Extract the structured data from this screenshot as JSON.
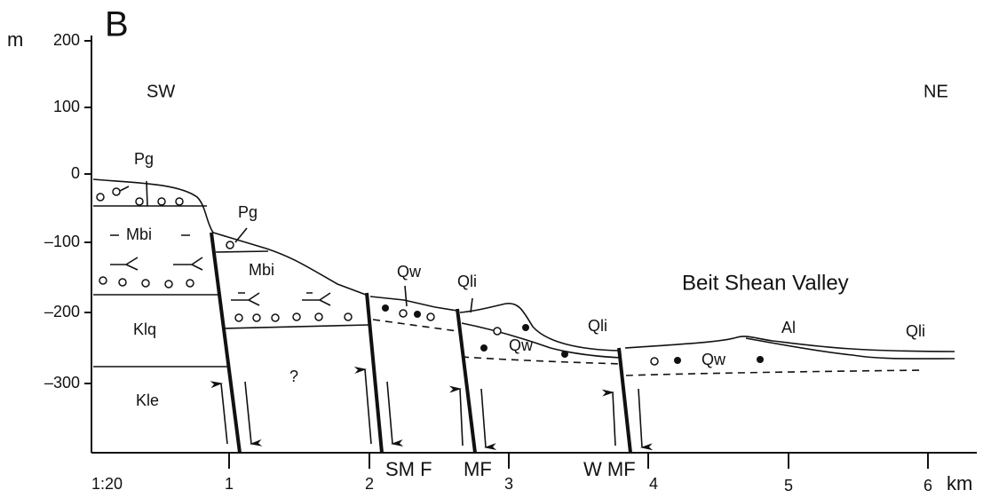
{
  "panel_label": "B",
  "y_axis": {
    "unit": "m",
    "ticks": [
      "200",
      "100",
      "0",
      "–100",
      "–200",
      "–300"
    ]
  },
  "x_axis": {
    "scale": "1:20",
    "unit": "km",
    "ticks": [
      "1",
      "2",
      "3",
      "4",
      "5",
      "6"
    ]
  },
  "directions": {
    "left": "SW",
    "right": "NE"
  },
  "units": {
    "pg_1": "Pg",
    "pg_2": "Pg",
    "mbi_1": "Mbi",
    "mbi_2": "Mbi",
    "klq": "Klq",
    "kle": "Kle",
    "unknown": "?",
    "qw_1": "Qw",
    "qw_2": "Qw",
    "qw_3": "Qw",
    "qli_1": "Qli",
    "qli_2": "Qli",
    "qli_3": "Qli",
    "al": "Al"
  },
  "valley": "Beit Shean Valley",
  "faults": {
    "smf": "SM F",
    "mf": "MF",
    "wmf": "W MF"
  }
}
